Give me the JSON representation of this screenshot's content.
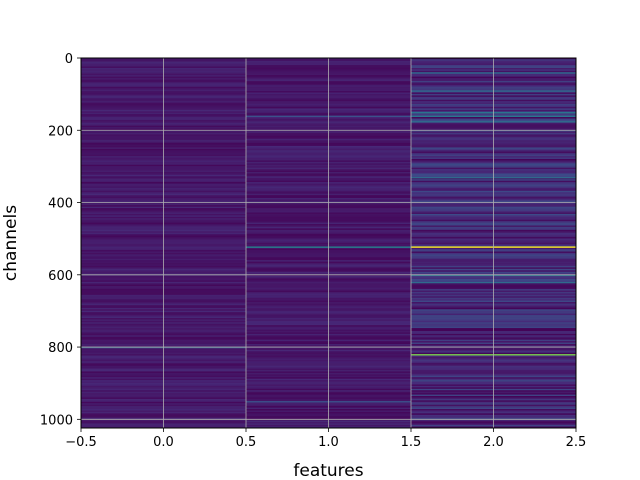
{
  "chart_data": {
    "type": "heatmap",
    "title": "",
    "xlabel": "features",
    "ylabel": "channels",
    "colormap": "viridis",
    "grid": true,
    "xlim": [
      -0.5,
      2.5
    ],
    "ylim": [
      1024,
      0
    ],
    "xticks": [
      -0.5,
      0.0,
      0.5,
      1.0,
      1.5,
      2.0,
      2.5
    ],
    "xtick_labels": [
      "−0.5",
      "0.0",
      "0.5",
      "1.0",
      "1.5",
      "2.0",
      "2.5"
    ],
    "yticks": [
      0,
      200,
      400,
      600,
      800,
      1000
    ],
    "ytick_labels": [
      "0",
      "200",
      "400",
      "600",
      "800",
      "1000"
    ],
    "n_rows": 1024,
    "columns": [
      0,
      1,
      2
    ],
    "column_base_level": [
      0.07,
      0.07,
      0.12
    ],
    "highlights": [
      {
        "column": 1,
        "row": 522,
        "level": 0.45
      },
      {
        "column": 2,
        "row": 522,
        "level": 1.0
      },
      {
        "column": 2,
        "row": 820,
        "level": 0.8
      },
      {
        "column": 0,
        "row": 800,
        "level": 0.3
      },
      {
        "column": 2,
        "row": 40,
        "level": 0.35
      },
      {
        "column": 2,
        "row": 90,
        "level": 0.35
      },
      {
        "column": 2,
        "row": 150,
        "level": 0.4
      },
      {
        "column": 2,
        "row": 160,
        "level": 0.4
      },
      {
        "column": 2,
        "row": 175,
        "level": 0.35
      },
      {
        "column": 2,
        "row": 330,
        "level": 0.35
      },
      {
        "column": 2,
        "row": 600,
        "level": 0.4
      },
      {
        "column": 2,
        "row": 620,
        "level": 0.35
      },
      {
        "column": 1,
        "row": 160,
        "level": 0.25
      },
      {
        "column": 1,
        "row": 950,
        "level": 0.25
      }
    ]
  }
}
